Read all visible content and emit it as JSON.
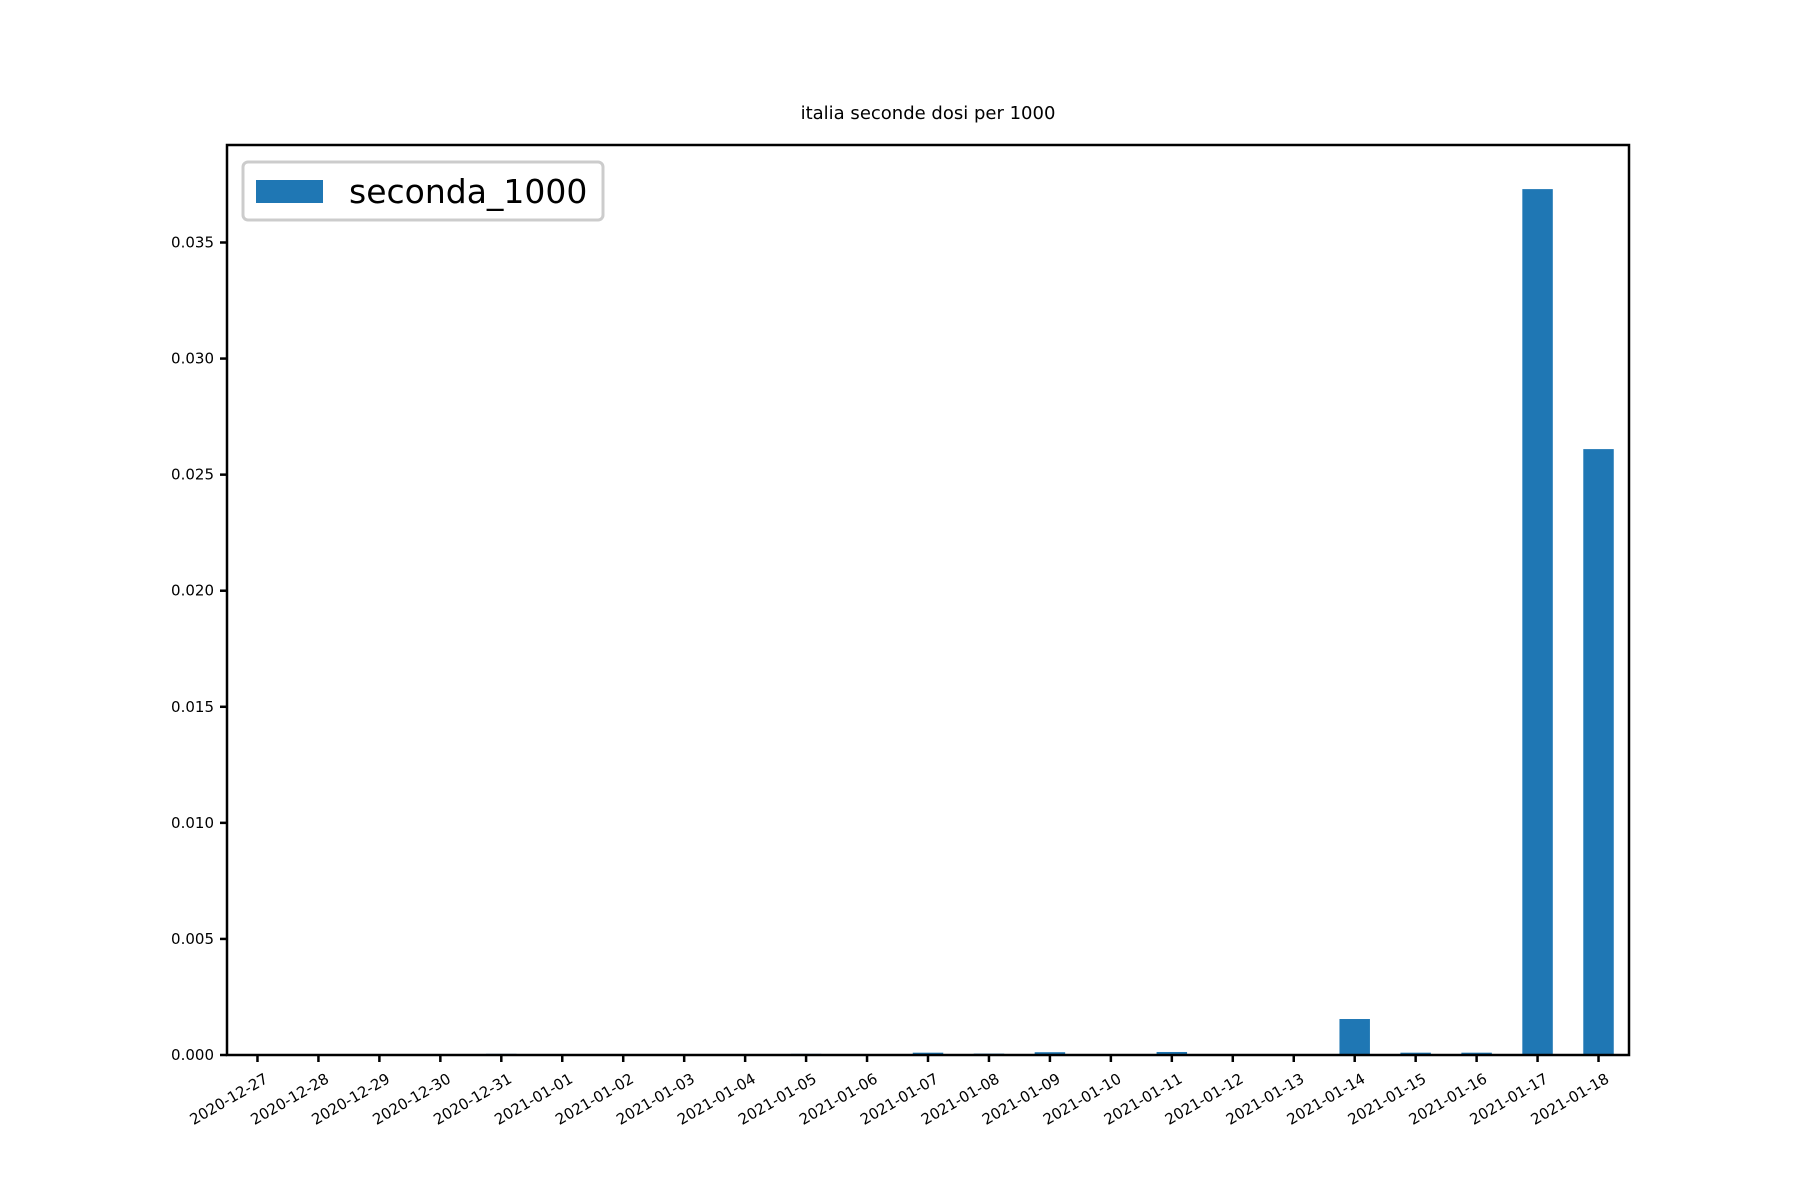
{
  "chart_data": {
    "type": "bar",
    "title": "italia seconde dosi per 1000",
    "xlabel": "",
    "ylabel": "",
    "categories": [
      "2020-12-27",
      "2020-12-28",
      "2020-12-29",
      "2020-12-30",
      "2020-12-31",
      "2021-01-01",
      "2021-01-02",
      "2021-01-03",
      "2021-01-04",
      "2021-01-05",
      "2021-01-06",
      "2021-01-07",
      "2021-01-08",
      "2021-01-09",
      "2021-01-10",
      "2021-01-11",
      "2021-01-12",
      "2021-01-13",
      "2021-01-14",
      "2021-01-15",
      "2021-01-16",
      "2021-01-17",
      "2021-01-18"
    ],
    "series": [
      {
        "name": "seconda_1000",
        "color": "#1f77b4",
        "values": [
          0,
          0,
          0,
          0,
          5e-05,
          0,
          0,
          0,
          0,
          5e-05,
          0,
          0.0001,
          6e-05,
          0.00012,
          0,
          0.00013,
          0,
          0,
          0.00155,
          0.0001,
          0.0001,
          0.0373,
          0.0261
        ]
      }
    ],
    "ylim": [
      0,
      0.0392
    ],
    "yticks": [
      "0.000",
      "0.005",
      "0.010",
      "0.015",
      "0.020",
      "0.025",
      "0.030",
      "0.035"
    ],
    "ytick_values": [
      0,
      0.005,
      0.01,
      0.015,
      0.02,
      0.025,
      0.03,
      0.035
    ],
    "xtick_rotation": 30,
    "grid": false,
    "legend_position": "top-left"
  }
}
